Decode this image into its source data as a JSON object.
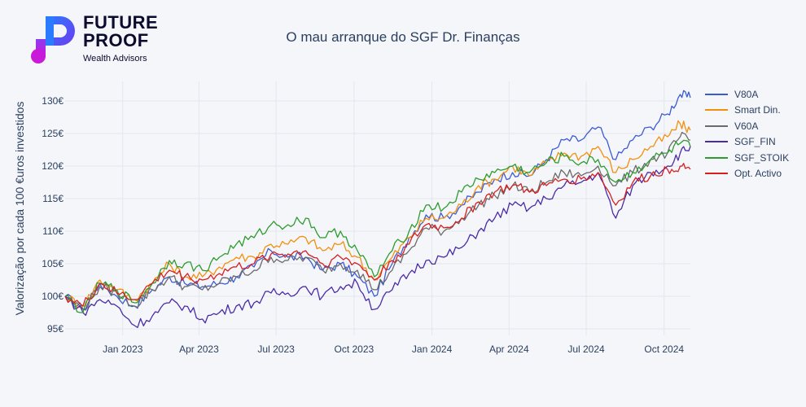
{
  "logo": {
    "line1": "FUTURE",
    "line2": "PROOF",
    "sub": "Wealth Advisors"
  },
  "title": "O mau arranque do SGF Dr. Finanças",
  "colors": {
    "background": "#f5f6fa",
    "grid": "#e3e6ee",
    "text": "#2a3f5f"
  },
  "chart_data": {
    "type": "line",
    "title": "O mau arranque do SGF Dr. Finanças",
    "xlabel": "",
    "ylabel": "Valorização por cada 100 €uros investidos",
    "xlim": [
      "2022-10-25",
      "2024-11-01"
    ],
    "ylim": [
      94,
      133
    ],
    "x_ticks": [
      {
        "date": "2023-01-01",
        "label": "Jan 2023"
      },
      {
        "date": "2023-04-01",
        "label": "Apr 2023"
      },
      {
        "date": "2023-07-01",
        "label": "Jul 2023"
      },
      {
        "date": "2023-10-01",
        "label": "Oct 2023"
      },
      {
        "date": "2024-01-01",
        "label": "Jan 2024"
      },
      {
        "date": "2024-04-01",
        "label": "Apr 2024"
      },
      {
        "date": "2024-07-01",
        "label": "Jul 2024"
      },
      {
        "date": "2024-10-01",
        "label": "Oct 2024"
      }
    ],
    "y_ticks": [
      {
        "value": 95,
        "label": "95€"
      },
      {
        "value": 100,
        "label": "100€"
      },
      {
        "value": 105,
        "label": "105€"
      },
      {
        "value": 110,
        "label": "110€"
      },
      {
        "value": 115,
        "label": "115€"
      },
      {
        "value": 120,
        "label": "120€"
      },
      {
        "value": 125,
        "label": "125€"
      },
      {
        "value": 130,
        "label": "130€"
      }
    ],
    "grid": true,
    "legend_position": "right",
    "x": [
      "2022-10-25",
      "2022-11-15",
      "2022-12-05",
      "2022-12-25",
      "2023-01-15",
      "2023-02-05",
      "2023-02-25",
      "2023-03-15",
      "2023-04-05",
      "2023-04-25",
      "2023-05-15",
      "2023-06-05",
      "2023-06-25",
      "2023-07-15",
      "2023-08-05",
      "2023-08-25",
      "2023-09-15",
      "2023-10-05",
      "2023-10-25",
      "2023-11-15",
      "2023-12-05",
      "2023-12-25",
      "2024-01-15",
      "2024-02-05",
      "2024-02-25",
      "2024-03-15",
      "2024-04-05",
      "2024-04-25",
      "2024-05-15",
      "2024-06-05",
      "2024-06-25",
      "2024-07-15",
      "2024-08-05",
      "2024-08-25",
      "2024-09-15",
      "2024-10-05",
      "2024-10-20",
      "2024-11-01"
    ],
    "series": [
      {
        "name": "V80A",
        "color": "#3b5bd4",
        "values": [
          100,
          98,
          102,
          100,
          98.5,
          101,
          103,
          102,
          101.5,
          102,
          103,
          104.5,
          107,
          106,
          106,
          104,
          105,
          103,
          100,
          105,
          109,
          112.5,
          112,
          114,
          116,
          118,
          119,
          118.5,
          121,
          124,
          124,
          126,
          121,
          124,
          126,
          128,
          131,
          130.5
        ]
      },
      {
        "name": "Smart Din.",
        "color": "#f2900e",
        "values": [
          100,
          98.5,
          102.5,
          101,
          99.5,
          102,
          105,
          103,
          103,
          104.5,
          106,
          106,
          108,
          108,
          109,
          107,
          108,
          106,
          102.5,
          106,
          109,
          112,
          112,
          114,
          117,
          118,
          120,
          118.5,
          120.5,
          122,
          121.5,
          123,
          119,
          121,
          123,
          124.5,
          126.5,
          125.5
        ]
      },
      {
        "name": "V60A",
        "color": "#6b6b6b",
        "values": [
          100,
          98,
          101.5,
          100.5,
          98.5,
          101,
          103,
          101.5,
          101,
          102,
          103,
          104,
          106,
          105.5,
          106,
          104,
          105,
          104,
          101,
          104,
          107,
          110.5,
          110,
          112,
          114,
          115.5,
          117,
          116,
          117.5,
          119,
          118.5,
          120,
          117,
          119,
          121,
          122,
          124.5,
          124
        ]
      },
      {
        "name": "SGF_FIN",
        "color": "#4a2ba8",
        "values": [
          100,
          97.5,
          99.5,
          98.5,
          95.5,
          97,
          99,
          98.5,
          96.5,
          97.5,
          98.5,
          99,
          100.5,
          100.5,
          101.5,
          100,
          101.5,
          102,
          98,
          101,
          103.5,
          105.5,
          106,
          107.5,
          110,
          112,
          114,
          113.5,
          115,
          117,
          117.5,
          119,
          112,
          117,
          119,
          120,
          122,
          123
        ]
      },
      {
        "name": "SGF_STOIK",
        "color": "#2e9b2e",
        "values": [
          100,
          97.5,
          102,
          101,
          99,
          102,
          105.5,
          105,
          104,
          106,
          108,
          109,
          111,
          111,
          112,
          109,
          110,
          107,
          103,
          107,
          110,
          114,
          113.5,
          116,
          118,
          119,
          120,
          119,
          120.5,
          121.5,
          120.5,
          121,
          117.5,
          119,
          121,
          122,
          123.5,
          123
        ]
      },
      {
        "name": "Opt. Activo",
        "color": "#d62020",
        "values": [
          100,
          98.5,
          102,
          100.5,
          99.5,
          102,
          104,
          103,
          102.5,
          103.5,
          104.5,
          105,
          106.5,
          106.5,
          107,
          105,
          106,
          105,
          102.5,
          105.5,
          108,
          111,
          110.5,
          112,
          114.5,
          116,
          117,
          116,
          117,
          118,
          118,
          119,
          114,
          117.5,
          118.5,
          119.5,
          120,
          119.5
        ]
      }
    ]
  }
}
